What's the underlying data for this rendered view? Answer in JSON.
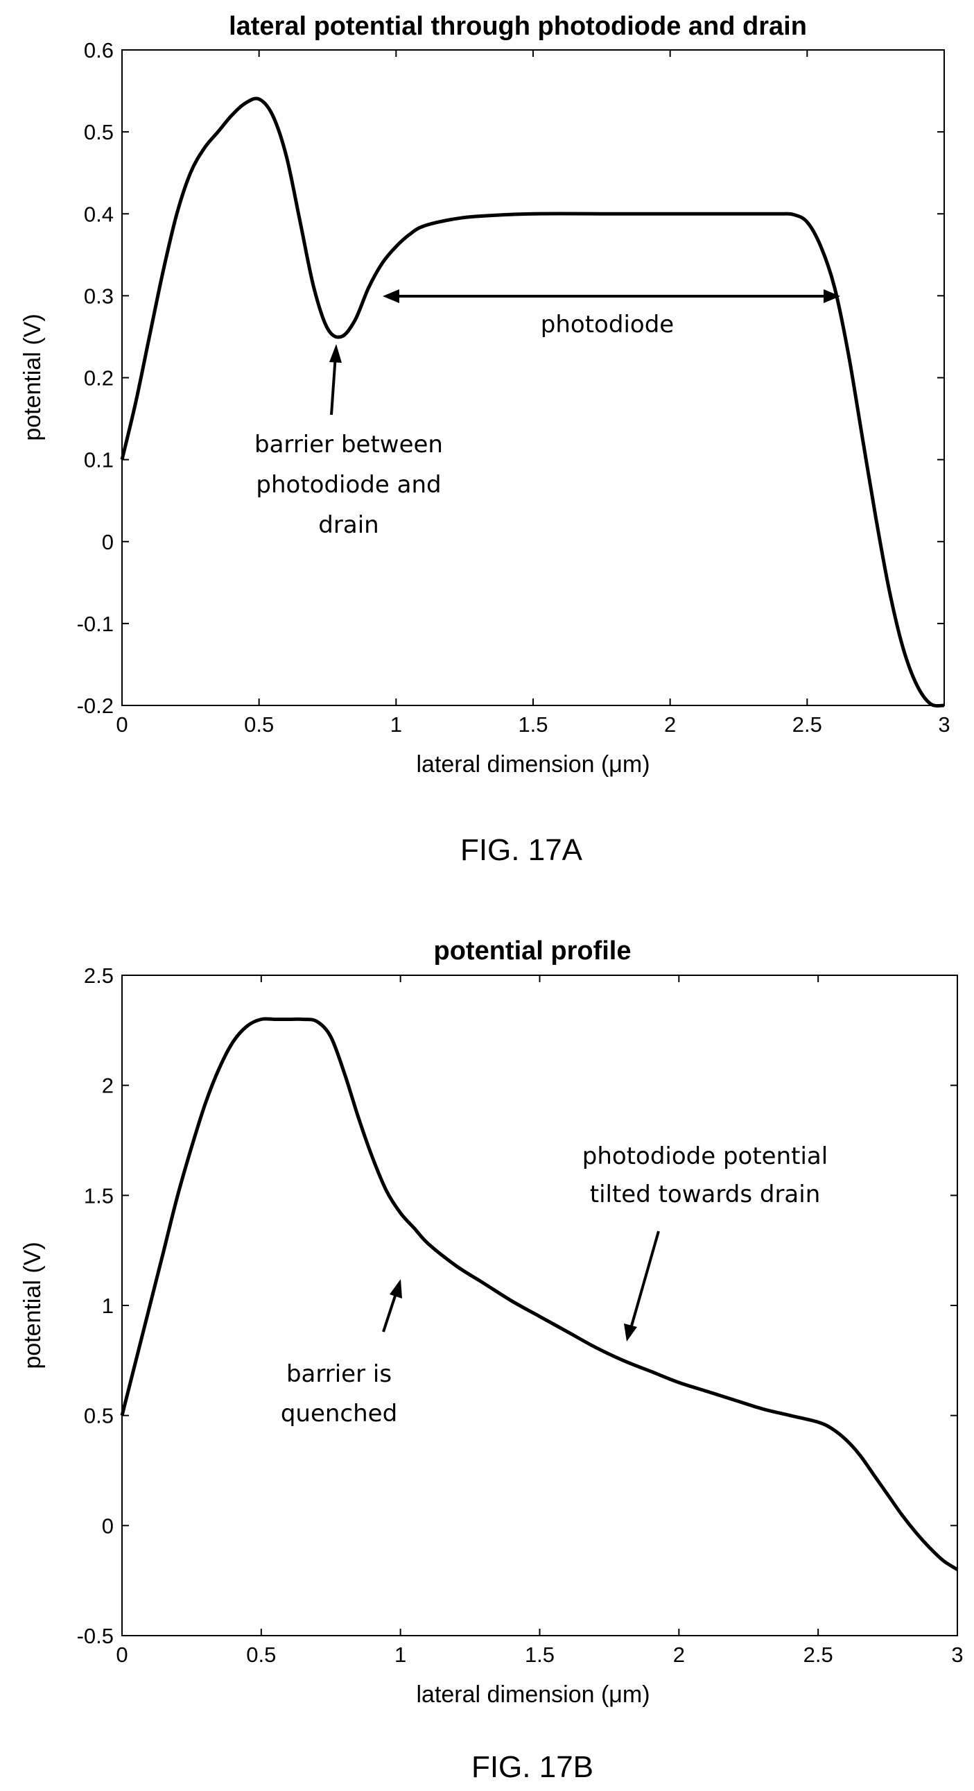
{
  "chart_data": [
    {
      "type": "line",
      "title": "lateral potential through photodiode and drain",
      "xlabel": "lateral dimension (μm)",
      "ylabel": "potential (V)",
      "xlim": [
        0,
        3
      ],
      "ylim": [
        -0.2,
        0.6
      ],
      "xticks": [
        "0",
        "0.5",
        "1",
        "1.5",
        "2",
        "2.5",
        "3"
      ],
      "yticks": [
        "-0.2",
        "-0.1",
        "0",
        "0.1",
        "0.2",
        "0.3",
        "0.4",
        "0.5",
        "0.6"
      ],
      "grid": false,
      "series": [
        {
          "x": [
            0,
            0.05,
            0.1,
            0.15,
            0.2,
            0.25,
            0.3,
            0.35,
            0.4,
            0.45,
            0.5,
            0.55,
            0.6,
            0.65,
            0.7,
            0.75,
            0.8,
            0.85,
            0.9,
            0.95,
            1.0,
            1.05,
            1.1,
            1.2,
            1.3,
            1.5,
            1.8,
            2.1,
            2.3,
            2.4,
            2.45,
            2.5,
            2.55,
            2.6,
            2.65,
            2.7,
            2.75,
            2.8,
            2.85,
            2.9,
            2.95,
            3.0
          ],
          "y": [
            0.1,
            0.17,
            0.25,
            0.33,
            0.4,
            0.45,
            0.48,
            0.5,
            0.52,
            0.535,
            0.54,
            0.52,
            0.47,
            0.39,
            0.31,
            0.26,
            0.25,
            0.27,
            0.31,
            0.34,
            0.36,
            0.375,
            0.385,
            0.393,
            0.397,
            0.4,
            0.4,
            0.4,
            0.4,
            0.4,
            0.399,
            0.39,
            0.36,
            0.31,
            0.23,
            0.13,
            0.03,
            -0.06,
            -0.13,
            -0.175,
            -0.198,
            -0.2
          ]
        }
      ],
      "annotations": [
        {
          "text_lines": [
            "barrier between",
            "photodiode and",
            "drain"
          ],
          "arrow_to": [
            0.79,
            0.24
          ]
        },
        {
          "text": "photodiode",
          "span_from": [
            0.95,
            0.305
          ],
          "span_to": [
            2.6,
            0.305
          ]
        }
      ],
      "caption": "FIG. 17A"
    },
    {
      "type": "line",
      "title": "potential profile",
      "xlabel": "lateral dimension (μm)",
      "ylabel": "potential (V)",
      "xlim": [
        0,
        3
      ],
      "ylim": [
        -0.5,
        2.5
      ],
      "xticks": [
        "0",
        "0.5",
        "1",
        "1.5",
        "2",
        "2.5",
        "3"
      ],
      "yticks": [
        "-0.5",
        "0",
        "0.5",
        "1",
        "1.5",
        "2",
        "2.5"
      ],
      "grid": false,
      "series": [
        {
          "x": [
            0,
            0.05,
            0.1,
            0.15,
            0.2,
            0.25,
            0.3,
            0.35,
            0.4,
            0.45,
            0.5,
            0.55,
            0.6,
            0.65,
            0.7,
            0.75,
            0.8,
            0.85,
            0.9,
            0.95,
            1.0,
            1.05,
            1.1,
            1.2,
            1.3,
            1.4,
            1.5,
            1.6,
            1.7,
            1.8,
            1.9,
            2.0,
            2.1,
            2.2,
            2.3,
            2.4,
            2.5,
            2.55,
            2.6,
            2.65,
            2.7,
            2.75,
            2.8,
            2.85,
            2.9,
            2.95,
            3.0
          ],
          "y": [
            0.5,
            0.75,
            1.0,
            1.25,
            1.5,
            1.72,
            1.92,
            2.08,
            2.2,
            2.27,
            2.3,
            2.3,
            2.3,
            2.3,
            2.29,
            2.22,
            2.05,
            1.85,
            1.67,
            1.52,
            1.42,
            1.35,
            1.28,
            1.18,
            1.1,
            1.02,
            0.95,
            0.88,
            0.81,
            0.75,
            0.7,
            0.65,
            0.61,
            0.57,
            0.53,
            0.5,
            0.47,
            0.44,
            0.39,
            0.32,
            0.23,
            0.14,
            0.05,
            -0.03,
            -0.1,
            -0.16,
            -0.2
          ]
        }
      ],
      "annotations": [
        {
          "text_lines": [
            "barrier is",
            "quenched"
          ],
          "arrow_to": [
            1.02,
            1.17
          ]
        },
        {
          "text_lines": [
            "photodiode potential",
            "tilted towards drain"
          ],
          "arrow_to": [
            1.81,
            0.8
          ]
        }
      ],
      "caption": "FIG. 17B"
    }
  ]
}
